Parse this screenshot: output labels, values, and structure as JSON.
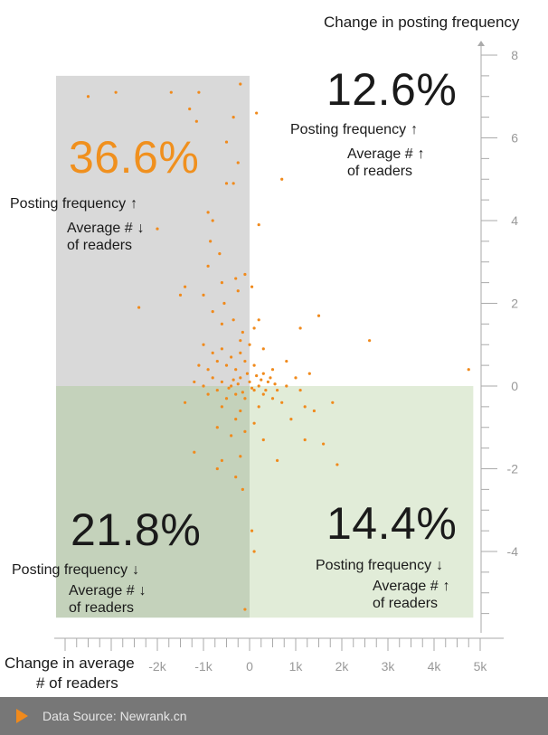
{
  "chart_data": {
    "type": "scatter",
    "title": "",
    "xlabel_line1": "Change in average",
    "xlabel_line2": "# of readers",
    "ylabel": "Change in posting frequency",
    "xlim": [
      -4250,
      5000
    ],
    "ylim": [
      -5.8,
      8.3
    ],
    "x_ticks": [
      {
        "value": -2000,
        "label": "-2k"
      },
      {
        "value": -1000,
        "label": "-1k"
      },
      {
        "value": 0,
        "label": "0"
      },
      {
        "value": 1000,
        "label": "1k"
      },
      {
        "value": 2000,
        "label": "2k"
      },
      {
        "value": 3000,
        "label": "3k"
      },
      {
        "value": 4000,
        "label": "4k"
      },
      {
        "value": 5000,
        "label": "5k"
      }
    ],
    "y_ticks": [
      {
        "value": 8,
        "label": "8"
      },
      {
        "value": 6,
        "label": "6"
      },
      {
        "value": 4,
        "label": "4"
      },
      {
        "value": 2,
        "label": "2"
      },
      {
        "value": 0,
        "label": "0"
      },
      {
        "value": -2,
        "label": "-2"
      },
      {
        "value": -4,
        "label": "-4"
      }
    ],
    "quadrants": [
      {
        "id": "top-left",
        "percent": "36.6%",
        "line1": "Posting frequency",
        "arrow1": "↑",
        "line2": "Average #",
        "arrow2": "↓",
        "line3": "of readers",
        "color": "#d9d9d9",
        "text_color": "#f0901e"
      },
      {
        "id": "top-right",
        "percent": "12.6%",
        "line1": "Posting frequency",
        "arrow1": "↑",
        "line2": "Average #",
        "arrow2": "↑",
        "line3": "of readers",
        "color": "#ffffff",
        "text_color": "#1a1a1a"
      },
      {
        "id": "bottom-left",
        "percent": "21.8%",
        "line1": "Posting frequency",
        "arrow1": "↓",
        "line2": "Average #",
        "arrow2": "↓",
        "line3": "of readers",
        "color": "#c4d2bb",
        "text_color": "#1a1a1a"
      },
      {
        "id": "bottom-right",
        "percent": "14.4%",
        "line1": "Posting frequency",
        "arrow1": "↓",
        "line2": "Average #",
        "arrow2": "↑",
        "line3": "of readers",
        "color": "#e1ecd8",
        "text_color": "#1a1a1a"
      }
    ],
    "point_color": "#f08a1c",
    "points": [
      [
        -3500,
        7.0
      ],
      [
        -2900,
        7.1
      ],
      [
        -1700,
        7.1
      ],
      [
        -1300,
        6.7
      ],
      [
        -1100,
        7.1
      ],
      [
        -200,
        7.3
      ],
      [
        -1150,
        6.4
      ],
      [
        -350,
        6.5
      ],
      [
        150,
        6.6
      ],
      [
        -500,
        5.9
      ],
      [
        -250,
        5.4
      ],
      [
        -350,
        4.9
      ],
      [
        -500,
        4.9
      ],
      [
        700,
        5.0
      ],
      [
        -900,
        4.2
      ],
      [
        -800,
        4.0
      ],
      [
        -2000,
        3.8
      ],
      [
        200,
        3.9
      ],
      [
        -850,
        3.5
      ],
      [
        -650,
        3.2
      ],
      [
        -900,
        2.9
      ],
      [
        -300,
        2.6
      ],
      [
        -100,
        2.7
      ],
      [
        -600,
        2.5
      ],
      [
        -1400,
        2.4
      ],
      [
        -1500,
        2.2
      ],
      [
        -1000,
        2.2
      ],
      [
        -250,
        2.3
      ],
      [
        50,
        2.4
      ],
      [
        -550,
        2.0
      ],
      [
        -800,
        1.8
      ],
      [
        -2400,
        1.9
      ],
      [
        200,
        1.6
      ],
      [
        1100,
        1.4
      ],
      [
        1500,
        1.7
      ],
      [
        -600,
        1.5
      ],
      [
        -350,
        1.6
      ],
      [
        -150,
        1.3
      ],
      [
        100,
        1.4
      ],
      [
        -200,
        1.1
      ],
      [
        2600,
        1.1
      ],
      [
        4750,
        0.4
      ],
      [
        -1000,
        1.0
      ],
      [
        -800,
        0.8
      ],
      [
        -600,
        0.9
      ],
      [
        -400,
        0.7
      ],
      [
        -200,
        0.8
      ],
      [
        0,
        1.0
      ],
      [
        300,
        0.9
      ],
      [
        -1100,
        0.5
      ],
      [
        -900,
        0.4
      ],
      [
        -700,
        0.6
      ],
      [
        -500,
        0.5
      ],
      [
        -300,
        0.4
      ],
      [
        -100,
        0.6
      ],
      [
        100,
        0.5
      ],
      [
        300,
        0.3
      ],
      [
        500,
        0.4
      ],
      [
        800,
        0.6
      ],
      [
        1000,
        0.2
      ],
      [
        1300,
        0.3
      ],
      [
        -1200,
        0.1
      ],
      [
        -1000,
        0.0
      ],
      [
        -800,
        0.2
      ],
      [
        -600,
        0.1
      ],
      [
        -400,
        0.0
      ],
      [
        -200,
        0.2
      ],
      [
        0,
        0.1
      ],
      [
        200,
        0.0
      ],
      [
        400,
        0.1
      ],
      [
        600,
        -0.1
      ],
      [
        800,
        0.0
      ],
      [
        1100,
        -0.1
      ],
      [
        -900,
        -0.2
      ],
      [
        -700,
        -0.1
      ],
      [
        -500,
        -0.3
      ],
      [
        -300,
        -0.2
      ],
      [
        -100,
        -0.3
      ],
      [
        100,
        -0.1
      ],
      [
        300,
        -0.2
      ],
      [
        500,
        -0.3
      ],
      [
        -1400,
        -0.4
      ],
      [
        -600,
        -0.5
      ],
      [
        -200,
        -0.6
      ],
      [
        200,
        -0.5
      ],
      [
        700,
        -0.4
      ],
      [
        1200,
        -0.5
      ],
      [
        1800,
        -0.4
      ],
      [
        -300,
        -0.8
      ],
      [
        100,
        -0.9
      ],
      [
        900,
        -0.8
      ],
      [
        1400,
        -0.6
      ],
      [
        -700,
        -1.0
      ],
      [
        -400,
        -1.2
      ],
      [
        -100,
        -1.1
      ],
      [
        300,
        -1.3
      ],
      [
        1200,
        -1.3
      ],
      [
        1600,
        -1.4
      ],
      [
        -1200,
        -1.6
      ],
      [
        -600,
        -1.8
      ],
      [
        -200,
        -1.7
      ],
      [
        600,
        -1.8
      ],
      [
        1900,
        -1.9
      ],
      [
        -700,
        -2.0
      ],
      [
        -300,
        -2.2
      ],
      [
        -150,
        -2.5
      ],
      [
        50,
        -3.5
      ],
      [
        100,
        -4.0
      ],
      [
        -100,
        -5.4
      ],
      [
        -50,
        0.3
      ],
      [
        50,
        -0.05
      ],
      [
        150,
        0.25
      ],
      [
        -150,
        -0.15
      ],
      [
        250,
        0.15
      ],
      [
        -250,
        0.05
      ],
      [
        350,
        -0.1
      ],
      [
        -350,
        0.15
      ],
      [
        450,
        0.2
      ],
      [
        -450,
        -0.05
      ],
      [
        550,
        0.05
      ]
    ]
  },
  "footer": {
    "source": "Data Source: Newrank.cn",
    "accent": "#f08a1c",
    "background": "#777777"
  }
}
